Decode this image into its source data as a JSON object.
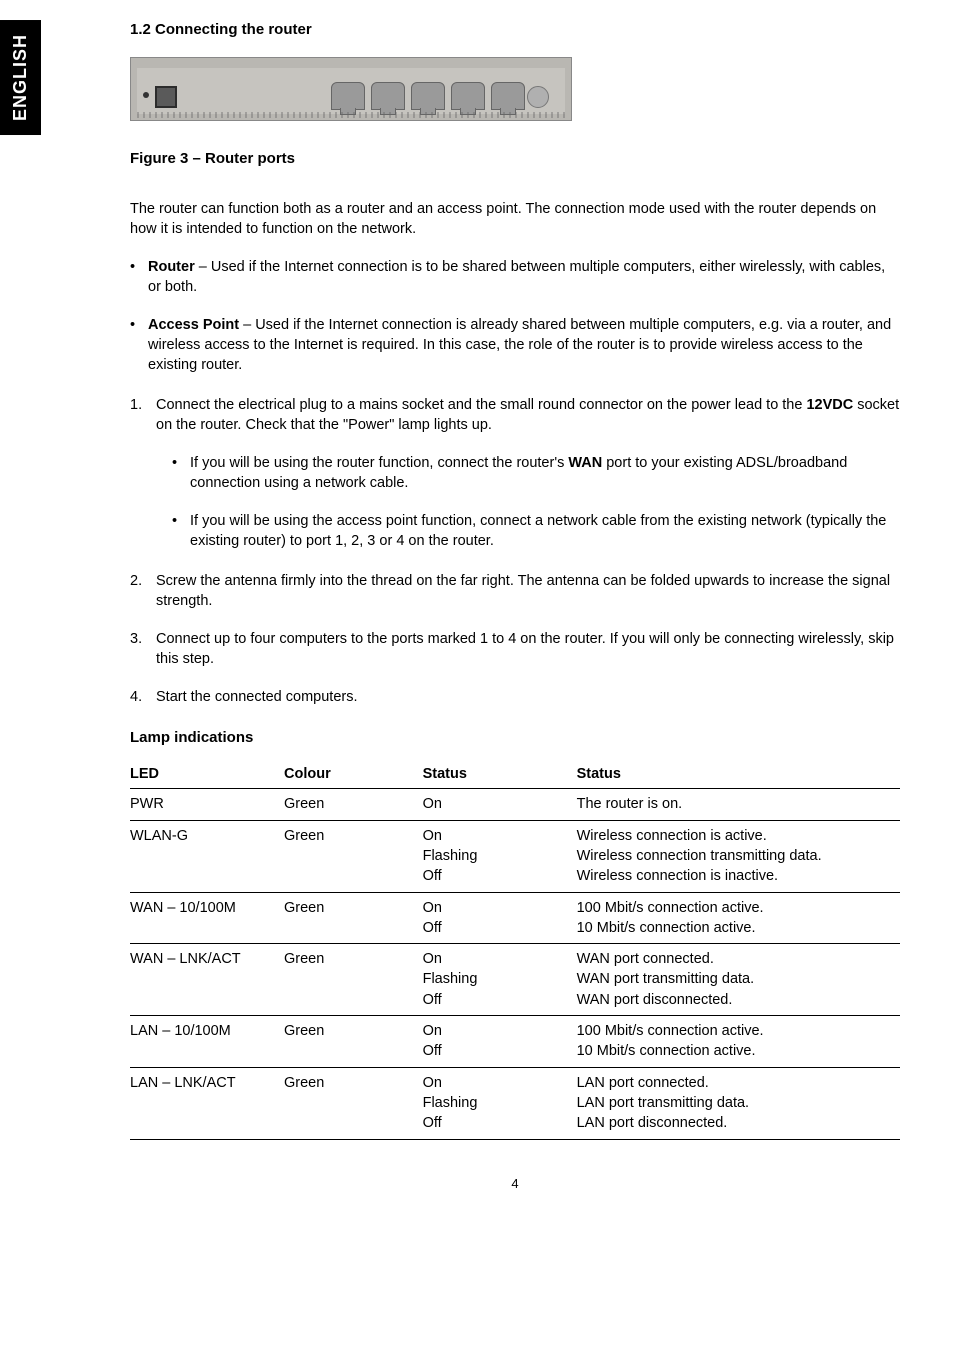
{
  "language_tab": "ENGLISH",
  "section": {
    "number_title": "1.2 Connecting the router"
  },
  "figure": {
    "caption": "Figure 3 – Router ports"
  },
  "intro": "The router can function both as a router and an access point. The connection mode used with the router depends on how it is intended to function on the network.",
  "modes": [
    {
      "label": "Router",
      "text": " – Used if the Internet connection is to be shared between multiple computers, either wirelessly, with cables, or both."
    },
    {
      "label": "Access Point",
      "text": " – Used if the Internet connection is already shared between multiple computers, e.g. via a router, and wireless access to the Internet is required. In this case, the role of the router is to provide wireless access to the existing router."
    }
  ],
  "step1": {
    "num": "1.",
    "pre": "Connect the electrical plug to a mains socket and the small round connector on the power lead to the ",
    "bold": "12VDC",
    "post": " socket on the router. Check that the \"Power\" lamp lights up."
  },
  "step1_subs": [
    {
      "pre": "If you will be using the router function, connect the router's ",
      "bold": "WAN",
      "post": " port to your existing ADSL/broadband connection using a network cable."
    },
    {
      "text": "If you will be using the access point function, connect a network cable from the existing network (typically the existing router) to port 1, 2, 3 or 4 on the router."
    }
  ],
  "steps_rest": [
    {
      "num": "2.",
      "text": "Screw the antenna firmly into the thread on the far right. The antenna can be folded upwards to increase the signal strength."
    },
    {
      "num": "3.",
      "text": "Connect up to four computers to the ports marked 1 to 4 on the router. If you will only be connecting wirelessly, skip this step."
    },
    {
      "num": "4.",
      "text": "Start the connected computers."
    }
  ],
  "lamp_heading": "Lamp indications",
  "table": {
    "headers": [
      "LED",
      "Colour",
      "Status",
      "Status"
    ],
    "rows": [
      {
        "led": "PWR",
        "colour": "Green",
        "status": "On",
        "desc": "The router is on."
      },
      {
        "led": "WLAN-G",
        "colour": "Green",
        "status": "On\nFlashing\nOff",
        "desc": "Wireless connection is active.\nWireless connection transmitting data.\nWireless connection is inactive."
      },
      {
        "led": "WAN – 10/100M",
        "colour": "Green",
        "status": "On\nOff",
        "desc": "100 Mbit/s connection active.\n10 Mbit/s connection active."
      },
      {
        "led": "WAN – LNK/ACT",
        "colour": "Green",
        "status": "On\nFlashing\nOff",
        "desc": "WAN port connected.\nWAN port transmitting data.\nWAN port disconnected."
      },
      {
        "led": "LAN – 10/100M",
        "colour": "Green",
        "status": "On\nOff",
        "desc": "100 Mbit/s connection active.\n10 Mbit/s connection active."
      },
      {
        "led": "LAN – LNK/ACT",
        "colour": "Green",
        "status": "On\nFlashing\nOff",
        "desc": "LAN port connected.\nLAN port transmitting data.\nLAN port disconnected."
      }
    ]
  },
  "page_number": "4"
}
